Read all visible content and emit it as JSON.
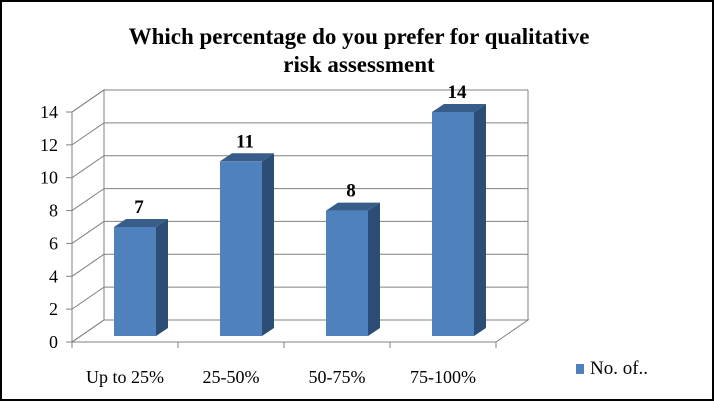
{
  "chart_data": {
    "type": "bar",
    "title_lines": [
      "Which percentage do  you prefer for qualitative",
      "risk assessment"
    ],
    "categories": [
      "Up to 25%",
      "25-50%",
      "50-75%",
      "75-100%"
    ],
    "series": [
      {
        "name": "No. of..",
        "values": [
          7,
          11,
          8,
          14
        ],
        "color": "#4f81bd"
      }
    ],
    "ylim": [
      0,
      14
    ],
    "yticks": [
      "0",
      "2",
      "4",
      "6",
      "8",
      "10",
      "12",
      "14"
    ],
    "data_labels": [
      "7",
      "11",
      "8",
      "14"
    ],
    "grid": true,
    "style": "3d-column",
    "legend_position": "right"
  }
}
